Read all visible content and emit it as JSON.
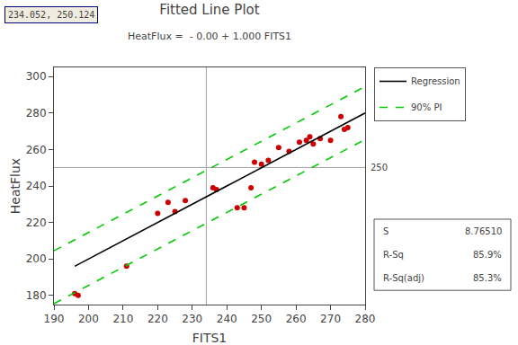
{
  "chart_data": {
    "type": "scatter",
    "title": "Fitted Line Plot",
    "subtitle": "HeatFlux =  - 0.00 + 1.000 FITS1",
    "x_label": "FITS1",
    "y_label": "HeatFlux",
    "xlim": [
      190,
      280
    ],
    "ylim": [
      175,
      305
    ],
    "xticks": [
      190,
      200,
      210,
      220,
      230,
      240,
      250,
      260,
      270,
      280
    ],
    "yticks": [
      180,
      200,
      220,
      240,
      260,
      280,
      300
    ],
    "grid": false,
    "series": [
      {
        "type": "scatter",
        "color": "#cc0000",
        "marker": "circle",
        "x": [
          196,
          197,
          211,
          220,
          223,
          225,
          228,
          236,
          237,
          243,
          245,
          247,
          248,
          250,
          252,
          255,
          258,
          261,
          263,
          264,
          265,
          267,
          270,
          273,
          274,
          275
        ],
        "values": [
          181,
          180,
          196,
          225,
          231,
          226,
          232,
          239,
          238,
          228,
          228,
          239,
          253,
          252,
          254,
          261,
          259,
          264,
          265,
          267,
          263,
          266,
          265,
          278,
          271,
          272
        ]
      },
      {
        "name": "Regression",
        "type": "line",
        "color": "#000000",
        "line_style": "solid",
        "x": [
          196,
          280
        ],
        "values": [
          196,
          280
        ]
      },
      {
        "name": "90% PI",
        "type": "line",
        "color": "#00cc00",
        "line_style": "dashed",
        "x": [
          190,
          280
        ],
        "values": [
          204.5,
          294.5
        ]
      },
      {
        "name": "90% PI",
        "type": "line",
        "color": "#00cc00",
        "line_style": "dashed",
        "x": [
          190,
          280
        ],
        "values": [
          175.5,
          265.5
        ]
      }
    ],
    "crosshair": {
      "x": 234.052,
      "y": 250.124,
      "color": "#a0a0a0",
      "label": "234.052, 250.124"
    },
    "annotations": [
      {
        "text": "250",
        "y": 250.124
      }
    ],
    "stats": [
      {
        "label": "S",
        "value": "8.76510"
      },
      {
        "label": "R-Sq",
        "value": "85.9%"
      },
      {
        "label": "R-Sq(adj)",
        "value": "85.3%"
      }
    ]
  }
}
